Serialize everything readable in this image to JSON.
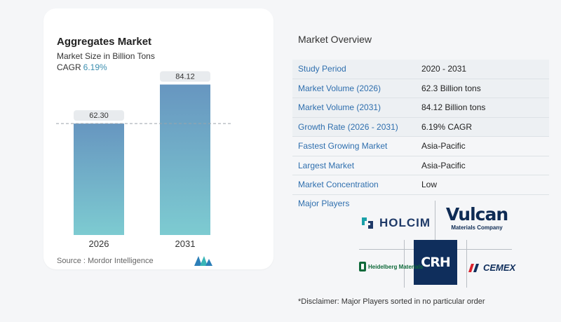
{
  "chart_data": {
    "type": "bar",
    "title": "Aggregates Market",
    "subtitle": "Market Size in Billion Tons",
    "cagr_label": "CAGR",
    "cagr_value": "6.19%",
    "categories": [
      "2026",
      "2031"
    ],
    "values": [
      62.3,
      84.12
    ],
    "value_labels": [
      "62.30",
      "84.12"
    ],
    "ylim": [
      0,
      100
    ],
    "reference_line": 62.3,
    "grid": false,
    "legend": "none",
    "colors": {
      "bar_top": "#6796c0",
      "bar_bottom": "#7dcbd1",
      "label_bg": "#e8ebee"
    }
  },
  "source": "Source :  Mordor Intelligence",
  "overview": {
    "title": "Market Overview",
    "rows": [
      {
        "label": "Study Period",
        "value": "2020 - 2031"
      },
      {
        "label": "Market Volume (2026)",
        "value": "62.3 Billion tons"
      },
      {
        "label": "Market Volume (2031)",
        "value": "84.12 Billion tons"
      },
      {
        "label": "Growth Rate (2026 - 2031)",
        "value": "6.19% CAGR"
      },
      {
        "label": "Fastest Growing Market",
        "value": "Asia-Pacific"
      },
      {
        "label": "Largest Market",
        "value": "Asia-Pacific"
      },
      {
        "label": "Market Concentration",
        "value": "Low"
      }
    ]
  },
  "players": {
    "title": "Major Players",
    "logos": {
      "holcim": "HOLCIM",
      "vulcan": "Vulcan",
      "vulcan_sub": "Materials Company",
      "crh": "CRH",
      "heidelberg": "Heidelberg Materials",
      "cemex": "CEMEX"
    }
  },
  "disclaimer": "*Disclaimer: Major Players sorted in no particular order"
}
